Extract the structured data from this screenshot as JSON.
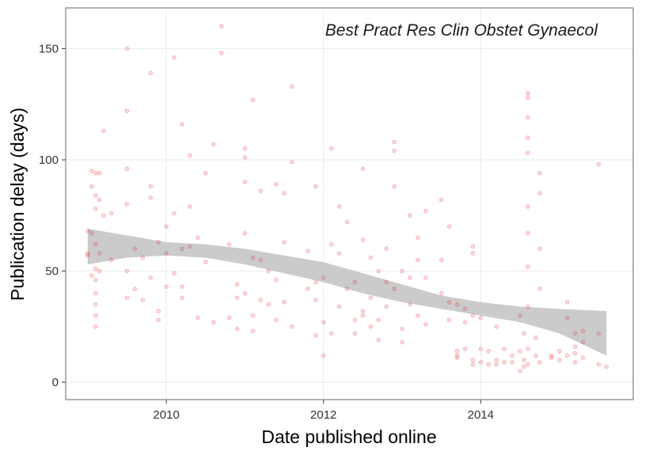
{
  "chart_data": {
    "type": "scatter",
    "annotation": "Best Pract Res Clin Obstet Gynaecol",
    "x_label": "Date published online",
    "y_label": "Publication delay (days)",
    "xlim": [
      2008.72,
      2015.94
    ],
    "ylim": [
      -7.8,
      168.3
    ],
    "xticks": [
      2010,
      2012,
      2014
    ],
    "yticks": [
      0,
      50,
      100,
      150
    ],
    "grid": true,
    "series": [
      {
        "color": "#e8141a",
        "x": [
          2009.0,
          2009.0,
          2009.0,
          2009.05,
          2009.05,
          2009.05,
          2009.05,
          2009.1,
          2009.1,
          2009.1,
          2009.1,
          2009.1,
          2009.1,
          2009.1,
          2009.1,
          2009.1,
          2009.1,
          2009.15,
          2009.15,
          2009.15,
          2009.15,
          2009.2,
          2009.2,
          2009.3,
          2009.3,
          2009.5,
          2009.5,
          2009.5,
          2009.5,
          2009.5,
          2009.5,
          2009.6,
          2009.6,
          2009.7,
          2009.7,
          2009.8,
          2009.8,
          2009.8,
          2009.8,
          2009.9,
          2009.9,
          2009.9,
          2010.0,
          2010.0,
          2010.0,
          2010.1,
          2010.1,
          2010.1,
          2010.2,
          2010.2,
          2010.2,
          2010.2,
          2010.3,
          2010.3,
          2010.3,
          2010.4,
          2010.4,
          2010.5,
          2010.5,
          2010.6,
          2010.6,
          2010.7,
          2010.7,
          2010.8,
          2010.8,
          2010.9,
          2010.9,
          2010.9,
          2011.0,
          2011.0,
          2011.0,
          2011.0,
          2011.0,
          2011.1,
          2011.1,
          2011.1,
          2011.1,
          2011.2,
          2011.2,
          2011.2,
          2011.3,
          2011.3,
          2011.4,
          2011.4,
          2011.4,
          2011.5,
          2011.5,
          2011.5,
          2011.6,
          2011.6,
          2011.6,
          2011.8,
          2011.8,
          2011.9,
          2011.9,
          2011.9,
          2011.9,
          2012.0,
          2012.0,
          2012.0,
          2012.1,
          2012.1,
          2012.1,
          2012.2,
          2012.2,
          2012.2,
          2012.3,
          2012.3,
          2012.4,
          2012.4,
          2012.4,
          2012.5,
          2012.5,
          2012.5,
          2012.5,
          2012.6,
          2012.6,
          2012.6,
          2012.7,
          2012.7,
          2012.7,
          2012.8,
          2012.8,
          2012.8,
          2012.9,
          2012.9,
          2012.9,
          2012.9,
          2013.0,
          2013.0,
          2013.0,
          2013.1,
          2013.1,
          2013.1,
          2013.2,
          2013.2,
          2013.2,
          2013.3,
          2013.3,
          2013.3,
          2013.5,
          2013.5,
          2013.5,
          2013.6,
          2013.6,
          2013.6,
          2013.7,
          2013.7,
          2013.7,
          2013.7,
          2013.8,
          2013.8,
          2013.8,
          2013.9,
          2013.9,
          2013.9,
          2013.9,
          2013.9,
          2014.0,
          2014.0,
          2014.0,
          2014.1,
          2014.1,
          2014.2,
          2014.2,
          2014.2,
          2014.3,
          2014.3,
          2014.4,
          2014.4,
          2014.5,
          2014.5,
          2014.5,
          2014.55,
          2014.55,
          2014.55,
          2014.6,
          2014.6,
          2014.6,
          2014.6,
          2014.6,
          2014.6,
          2014.6,
          2014.6,
          2014.6,
          2014.6,
          2014.6,
          2014.7,
          2014.7,
          2014.75,
          2014.75,
          2014.75,
          2014.75,
          2014.75,
          2014.9,
          2014.9,
          2015.0,
          2015.0,
          2015.1,
          2015.1,
          2015.1,
          2015.2,
          2015.2,
          2015.2,
          2015.2,
          2015.3,
          2015.3,
          2015.3,
          2015.5,
          2015.5,
          2015.5,
          2015.6
        ],
        "values": [
          57,
          58,
          68,
          95,
          88,
          67,
          48,
          94,
          84,
          78,
          62,
          51,
          46,
          40,
          35,
          30,
          25,
          94,
          82,
          58,
          50,
          113,
          75,
          76,
          55,
          150,
          122,
          96,
          80,
          50,
          38,
          60,
          42,
          56,
          37,
          139,
          88,
          83,
          47,
          63,
          32,
          28,
          70,
          43,
          58,
          146,
          76,
          49,
          116,
          60,
          43,
          38,
          102,
          79,
          61,
          65,
          29,
          94,
          54,
          107,
          27,
          160,
          148,
          62,
          29,
          44,
          38,
          24,
          105,
          101,
          90,
          67,
          40,
          127,
          56,
          30,
          23,
          86,
          55,
          37,
          50,
          35,
          89,
          46,
          28,
          85,
          63,
          36,
          133,
          99,
          25,
          59,
          42,
          88,
          45,
          37,
          21,
          47,
          27,
          12,
          105,
          62,
          22,
          79,
          58,
          34,
          72,
          42,
          45,
          28,
          22,
          96,
          64,
          32,
          30,
          56,
          38,
          25,
          50,
          19,
          28,
          60,
          45,
          34,
          108,
          104,
          88,
          42,
          50,
          24,
          18,
          75,
          47,
          35,
          65,
          55,
          30,
          77,
          47,
          26,
          82,
          55,
          40,
          70,
          36,
          28,
          35,
          14,
          11,
          12,
          33,
          27,
          15,
          61,
          58,
          30,
          10,
          8,
          29,
          15,
          9,
          14,
          8,
          25,
          10,
          8,
          15,
          9,
          9,
          12,
          30,
          14,
          5,
          7,
          10,
          22,
          130,
          128,
          119,
          110,
          103,
          79,
          67,
          52,
          34,
          15,
          8,
          20,
          12,
          94,
          85,
          60,
          42,
          9,
          12,
          11,
          14,
          10,
          36,
          29,
          12,
          22,
          16,
          13,
          9,
          23,
          18,
          11,
          98,
          22,
          8,
          7
        ]
      }
    ],
    "ribbon": {
      "color": "#c8c8c8",
      "x": [
        2009.0,
        2009.5,
        2010,
        2010.5,
        2011,
        2011.5,
        2012,
        2012.5,
        2013,
        2013.5,
        2014,
        2014.5,
        2015,
        2015.6
      ],
      "lower": [
        53,
        56,
        57,
        56,
        53,
        49,
        45,
        40,
        36,
        33,
        30,
        27,
        22,
        12
      ],
      "upper": [
        69,
        66,
        63,
        62,
        60,
        57,
        54,
        49,
        44,
        39,
        36,
        34,
        33,
        32
      ]
    }
  }
}
